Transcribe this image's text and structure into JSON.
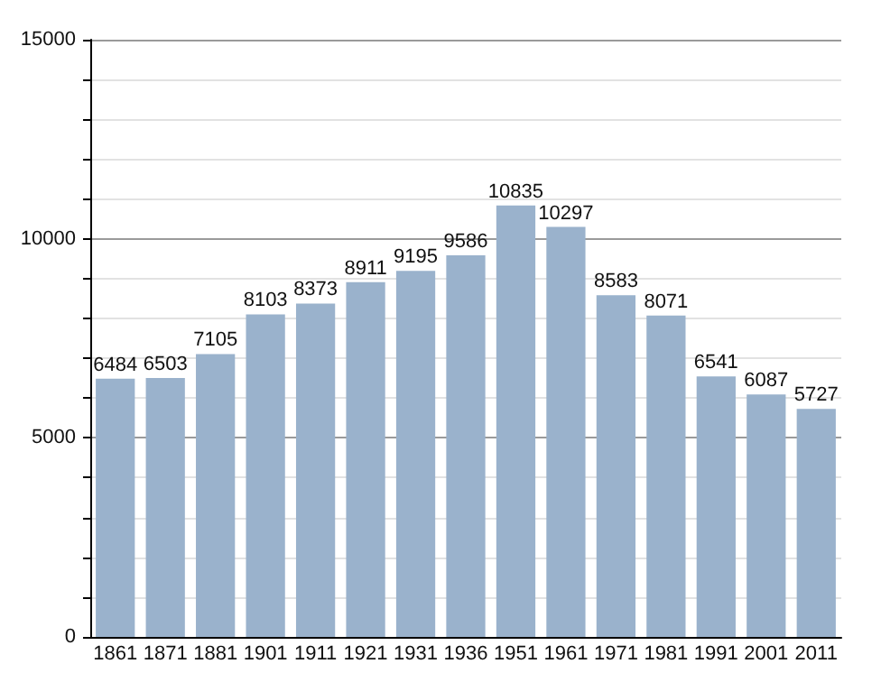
{
  "chart_data": {
    "type": "bar",
    "categories": [
      "1861",
      "1871",
      "1881",
      "1901",
      "1911",
      "1921",
      "1931",
      "1936",
      "1951",
      "1961",
      "1971",
      "1981",
      "1991",
      "2001",
      "2011"
    ],
    "values": [
      6484,
      6503,
      7105,
      8103,
      8373,
      8911,
      9195,
      9586,
      10835,
      10297,
      8583,
      8071,
      6541,
      6087,
      5727
    ],
    "color": "#9ab2cc",
    "ylim": [
      0,
      15000
    ],
    "yticks": [
      0,
      {
        "value": 1000,
        "label": null
      },
      {
        "value": 2000,
        "label": null
      },
      {
        "value": 3000,
        "label": null
      },
      {
        "value": 4000,
        "label": null
      },
      5000,
      {
        "value": 6000,
        "label": null
      },
      {
        "value": 7000,
        "label": null
      },
      {
        "value": 8000,
        "label": null
      },
      {
        "value": 9000,
        "label": null
      },
      10000,
      {
        "value": 11000,
        "label": null
      },
      {
        "value": 12000,
        "label": null
      },
      {
        "value": 13000,
        "label": null
      },
      {
        "value": 14000,
        "label": null
      },
      15000
    ],
    "grid": true,
    "data_labels": true
  }
}
